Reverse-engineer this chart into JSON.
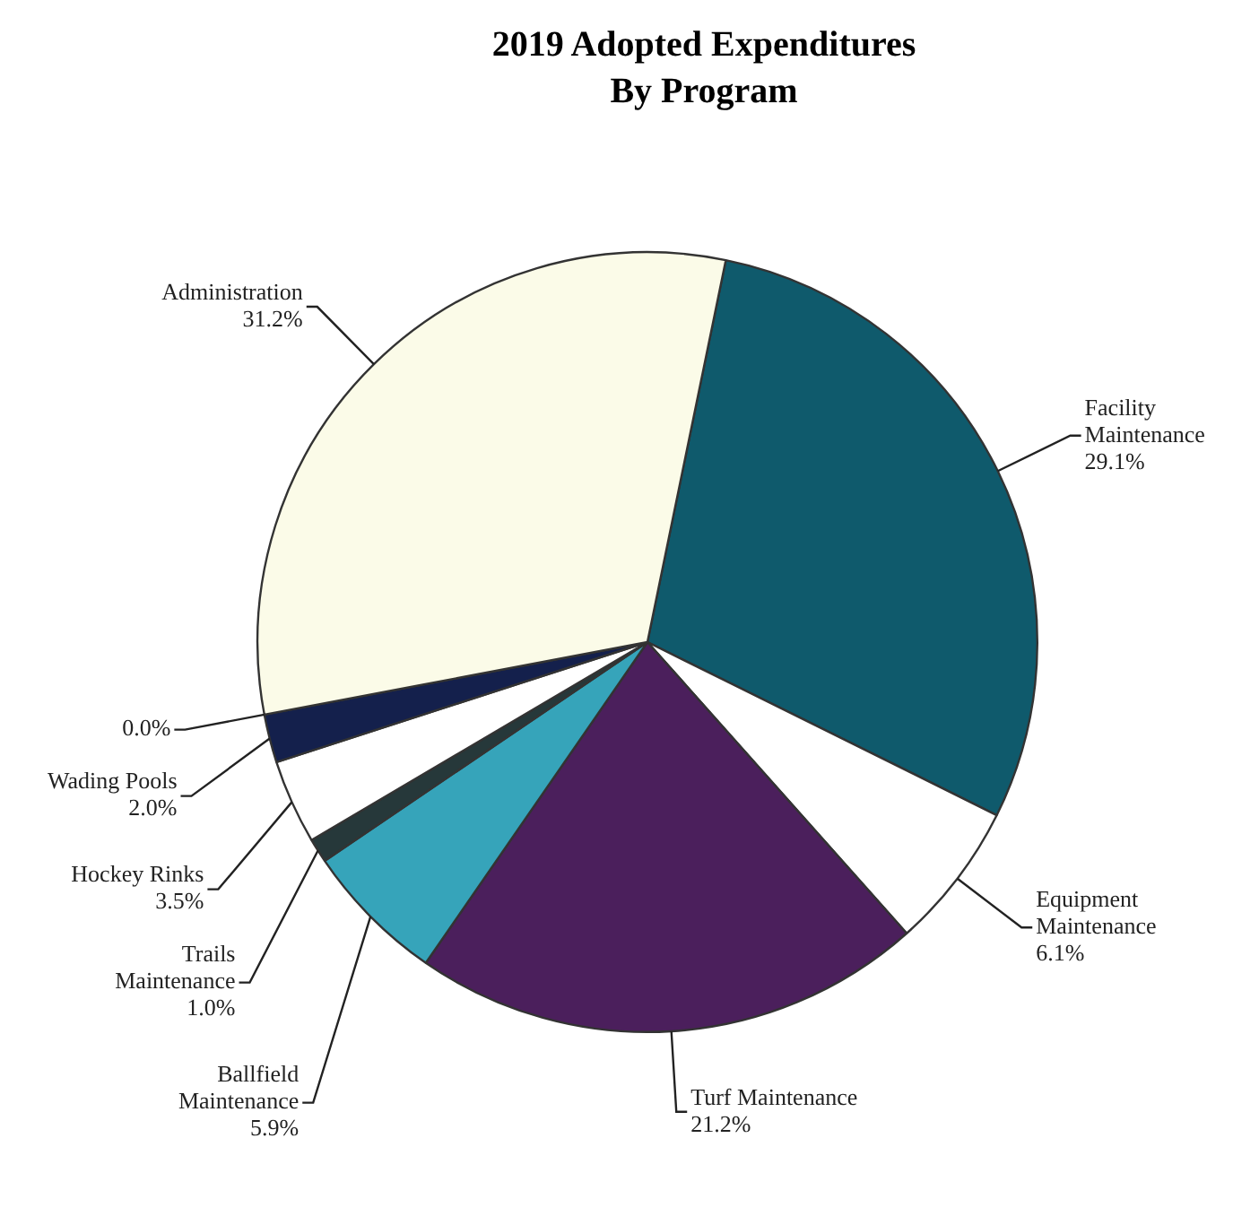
{
  "chart_data": {
    "type": "pie",
    "title": "2019 Adopted Expenditures By Program",
    "categories": [
      "Facility Maintenance",
      "Equipment Maintenance",
      "Turf Maintenance",
      "Ballfield Maintenance",
      "Trails Maintenance",
      "Hockey Rinks",
      "Wading Pools",
      null,
      "Administration"
    ],
    "values": [
      29.1,
      6.1,
      21.2,
      5.9,
      1.0,
      3.5,
      2.0,
      0.0,
      31.2
    ],
    "value_labels": [
      "29.1%",
      "6.1%",
      "21.2%",
      "5.9%",
      "1.0%",
      "3.5%",
      "2.0%",
      "0.0%",
      "31.2%"
    ],
    "colors": [
      "#0f5a6c",
      "#ffffff",
      "#4b1f5c",
      "#36a4ba",
      "#26383a",
      "#ffffff",
      "#14204c",
      "#6a6a6a",
      "#fbfbe8"
    ],
    "legend": false
  }
}
